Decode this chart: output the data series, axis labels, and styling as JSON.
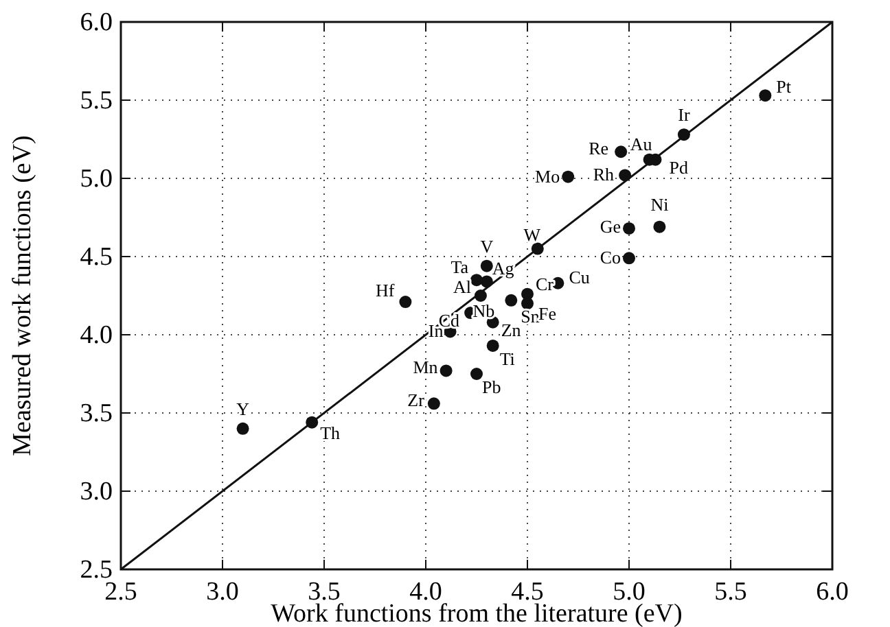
{
  "chart_data": {
    "type": "scatter",
    "xlabel": "Work functions from the literature (eV)",
    "ylabel": "Measured work functions (eV)",
    "xlim": [
      2.5,
      6.0
    ],
    "ylim": [
      2.5,
      6.0
    ],
    "xticks": [
      {
        "value": 2.5,
        "label": "2.5"
      },
      {
        "value": 3,
        "label": "3.0"
      },
      {
        "value": 3.5,
        "label": "3.5"
      },
      {
        "value": 4,
        "label": "4.0"
      },
      {
        "value": 4.5,
        "label": "4.5"
      },
      {
        "value": 5,
        "label": "5.0"
      },
      {
        "value": 5.5,
        "label": "5.5"
      },
      {
        "value": 6,
        "label": "6.0"
      }
    ],
    "yticks": [
      {
        "value": 2.5,
        "label": "2.5"
      },
      {
        "value": 3,
        "label": "3.0"
      },
      {
        "value": 3.5,
        "label": "3.5"
      },
      {
        "value": 4,
        "label": "4.0"
      },
      {
        "value": 4.5,
        "label": "4.5"
      },
      {
        "value": 5,
        "label": "5.0"
      },
      {
        "value": 5.5,
        "label": "5.5"
      },
      {
        "value": 6,
        "label": "6.0"
      }
    ],
    "grid": true,
    "marker": "circle",
    "series": [
      {
        "type": "scatter",
        "color": "#111111",
        "x": [
          3.1,
          3.44,
          3.9,
          4.04,
          4.1,
          4.25,
          4.33,
          4.12,
          4.22,
          4.33,
          4.27,
          4.42,
          4.5,
          4.5,
          4.65,
          4.25,
          4.3,
          4.3,
          4.55,
          4.7,
          5.0,
          5.0,
          5.15,
          4.98,
          4.96,
          5.1,
          5.13,
          5.27,
          5.67
        ],
        "values": [
          3.4,
          3.44,
          4.21,
          3.56,
          3.77,
          3.75,
          3.93,
          4.02,
          4.14,
          4.08,
          4.25,
          4.22,
          4.2,
          4.26,
          4.33,
          4.35,
          4.34,
          4.44,
          4.55,
          5.01,
          4.49,
          4.68,
          4.69,
          5.02,
          5.17,
          5.12,
          5.12,
          5.28,
          5.53
        ]
      },
      {
        "type": "line",
        "color": "#111111",
        "line_style": "solid",
        "marker": "none",
        "x": [
          2.5,
          6.0
        ],
        "values": [
          2.5,
          6.0
        ]
      }
    ],
    "annotations": [
      {
        "text": "Y",
        "x": 3.1,
        "y": 3.4
      },
      {
        "text": "Th",
        "x": 3.44,
        "y": 3.44
      },
      {
        "text": "Hf",
        "x": 3.9,
        "y": 4.21
      },
      {
        "text": "Zr",
        "x": 4.04,
        "y": 3.56
      },
      {
        "text": "Mn",
        "x": 4.1,
        "y": 3.77
      },
      {
        "text": "Pb",
        "x": 4.25,
        "y": 3.75
      },
      {
        "text": "Ti",
        "x": 4.33,
        "y": 3.93
      },
      {
        "text": "In",
        "x": 4.12,
        "y": 4.02
      },
      {
        "text": "Cd",
        "x": 4.22,
        "y": 4.14
      },
      {
        "text": "Zn",
        "x": 4.33,
        "y": 4.08
      },
      {
        "text": "Al",
        "x": 4.27,
        "y": 4.25
      },
      {
        "text": "Nb",
        "x": 4.42,
        "y": 4.22
      },
      {
        "text": "Sn",
        "x": 4.5,
        "y": 4.2
      },
      {
        "text": "Fe",
        "x": 4.5,
        "y": 4.2
      },
      {
        "text": "Cr",
        "x": 4.5,
        "y": 4.26
      },
      {
        "text": "Cu",
        "x": 4.65,
        "y": 4.33
      },
      {
        "text": "Ta",
        "x": 4.25,
        "y": 4.35
      },
      {
        "text": "Ag",
        "x": 4.3,
        "y": 4.34
      },
      {
        "text": "V",
        "x": 4.3,
        "y": 4.44
      },
      {
        "text": "W",
        "x": 4.55,
        "y": 4.55
      },
      {
        "text": "Mo",
        "x": 4.7,
        "y": 5.01
      },
      {
        "text": "Co",
        "x": 5.0,
        "y": 4.49
      },
      {
        "text": "Ge",
        "x": 5.0,
        "y": 4.68
      },
      {
        "text": "Ni",
        "x": 5.15,
        "y": 4.69
      },
      {
        "text": "Rh",
        "x": 4.98,
        "y": 5.02
      },
      {
        "text": "Re",
        "x": 4.96,
        "y": 5.17
      },
      {
        "text": "Au",
        "x": 5.1,
        "y": 5.12
      },
      {
        "text": "Pd",
        "x": 5.13,
        "y": 5.12
      },
      {
        "text": "Ir",
        "x": 5.27,
        "y": 5.28
      },
      {
        "text": "Pt",
        "x": 5.67,
        "y": 5.53
      }
    ]
  }
}
